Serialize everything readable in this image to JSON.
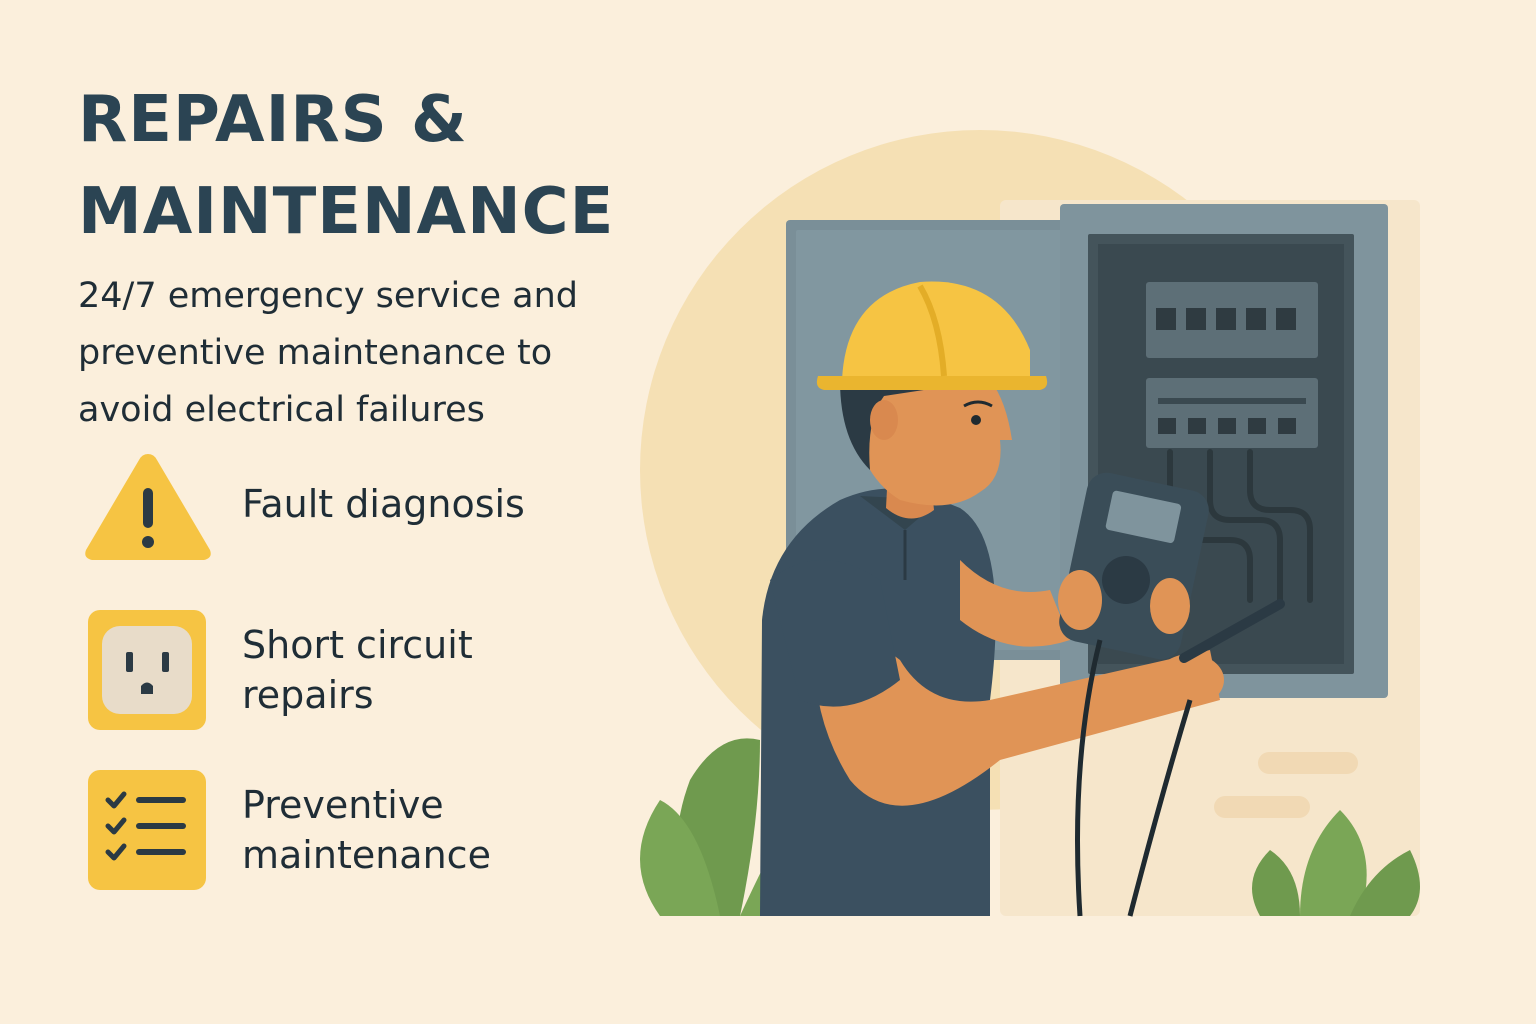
{
  "heading": {
    "line1": "REPAIRS &",
    "line2": "MAINTENANCE"
  },
  "description": {
    "line1": "24/7 emergency service and",
    "line2": "preventive maintenance to",
    "line3": "avoid electrical failures"
  },
  "features": [
    {
      "icon": "warning-icon",
      "line1": "Fault diagnosis",
      "line2": ""
    },
    {
      "icon": "power-outlet-icon",
      "line1": "Short circuit",
      "line2": "repairs"
    },
    {
      "icon": "checklist-icon",
      "line1": "Preventive",
      "line2": "maintenance"
    }
  ],
  "illustration": {
    "subject": "electrician-with-multimeter-at-breaker-panel-illustration"
  },
  "colors": {
    "background": "#fbefdc",
    "heading": "#2b4453",
    "accent_yellow": "#f6c443",
    "shirt": "#3b5060",
    "panel": "#6f8690",
    "leaves": "#6f9a4e"
  }
}
